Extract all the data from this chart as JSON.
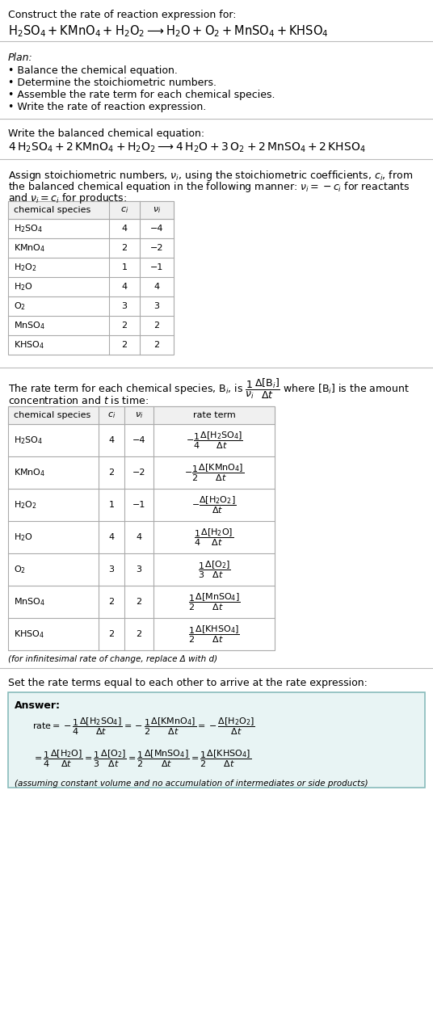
{
  "bg_color": "#ffffff",
  "text_color": "#000000",
  "title_line1": "Construct the rate of reaction expression for:",
  "plan_header": "Plan:",
  "plan_items": [
    "• Balance the chemical equation.",
    "• Determine the stoichiometric numbers.",
    "• Assemble the rate term for each chemical species.",
    "• Write the rate of reaction expression."
  ],
  "balanced_header": "Write the balanced chemical equation:",
  "table1_data": [
    [
      "H₂SO₄",
      "4",
      "−4"
    ],
    [
      "KMnO₄",
      "2",
      "−2"
    ],
    [
      "H₂O₂",
      "1",
      "−1"
    ],
    [
      "H₂O",
      "4",
      "4"
    ],
    [
      "O₂",
      "3",
      "3"
    ],
    [
      "MnSO₄",
      "2",
      "2"
    ],
    [
      "KHSO₄",
      "2",
      "2"
    ]
  ],
  "table2_data": [
    [
      "H₂SO₄",
      "4",
      "−4"
    ],
    [
      "KMnO₄",
      "2",
      "−2"
    ],
    [
      "H₂O₂",
      "1",
      "−1"
    ],
    [
      "H₂O",
      "4",
      "4"
    ],
    [
      "O₂",
      "3",
      "3"
    ],
    [
      "MnSO₄",
      "2",
      "2"
    ],
    [
      "KHSO₄",
      "2",
      "2"
    ]
  ],
  "infinitesimal_note": "(for infinitesimal rate of change, replace Δ with d)",
  "set_rate_intro": "Set the rate terms equal to each other to arrive at the rate expression:",
  "answer_label": "Answer:",
  "answer_box_edge": "#aacccc",
  "answer_box_face": "#f0f8f8",
  "assumption_note": "(assuming constant volume and no accumulation of intermediates or side products)"
}
